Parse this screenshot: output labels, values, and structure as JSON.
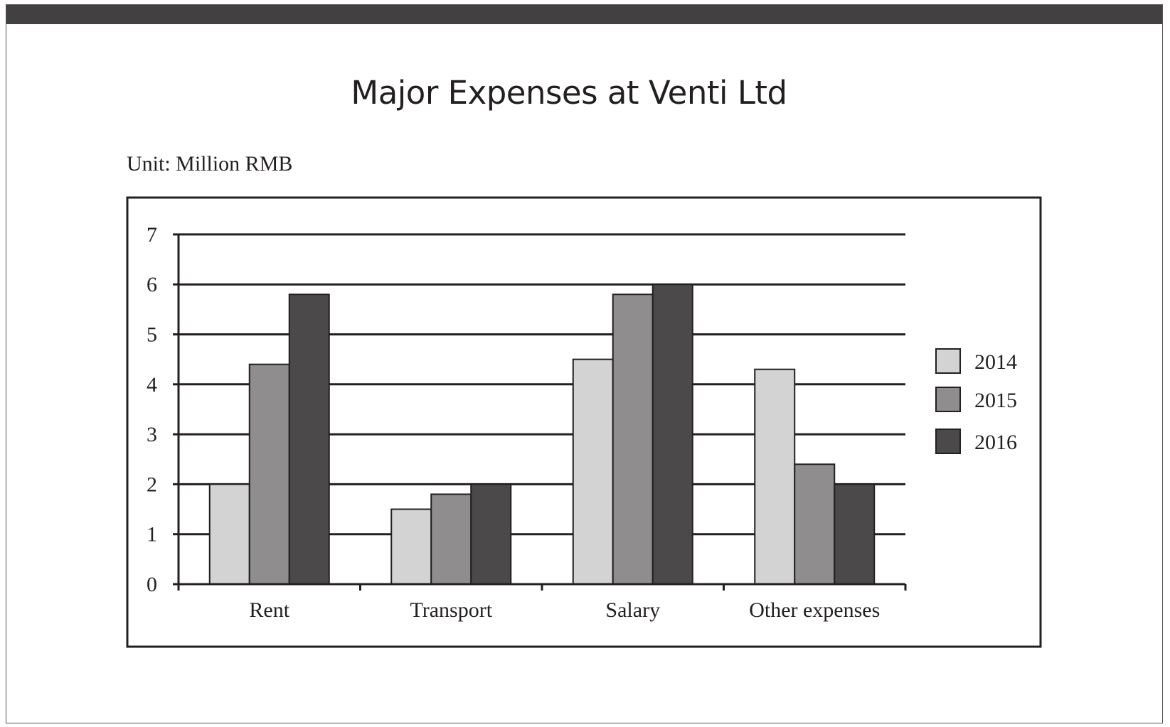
{
  "header": {
    "title": "Major Expenses at Venti Ltd",
    "unit": "Unit: Million RMB"
  },
  "chart_data": {
    "type": "bar",
    "title": "Major Expenses at Venti Ltd",
    "subtitle": "Unit: Million RMB",
    "categories": [
      "Rent",
      "Transport",
      "Salary",
      "Other expenses"
    ],
    "series": [
      {
        "name": "2014",
        "values": [
          2.0,
          1.5,
          4.5,
          4.3
        ],
        "color": "#d3d3d3"
      },
      {
        "name": "2015",
        "values": [
          4.4,
          1.8,
          5.8,
          2.4
        ],
        "color": "#8f8d8e"
      },
      {
        "name": "2016",
        "values": [
          5.8,
          2.0,
          6.0,
          2.0
        ],
        "color": "#4c494a"
      }
    ],
    "yticks": [
      0,
      1,
      2,
      3,
      4,
      5,
      6,
      7
    ],
    "ylim": [
      0,
      7
    ],
    "grid": true,
    "legend": "right"
  },
  "colors": {
    "frame_bar": "#434041",
    "axis": "#231f20",
    "bar_outline": "#231f20"
  }
}
